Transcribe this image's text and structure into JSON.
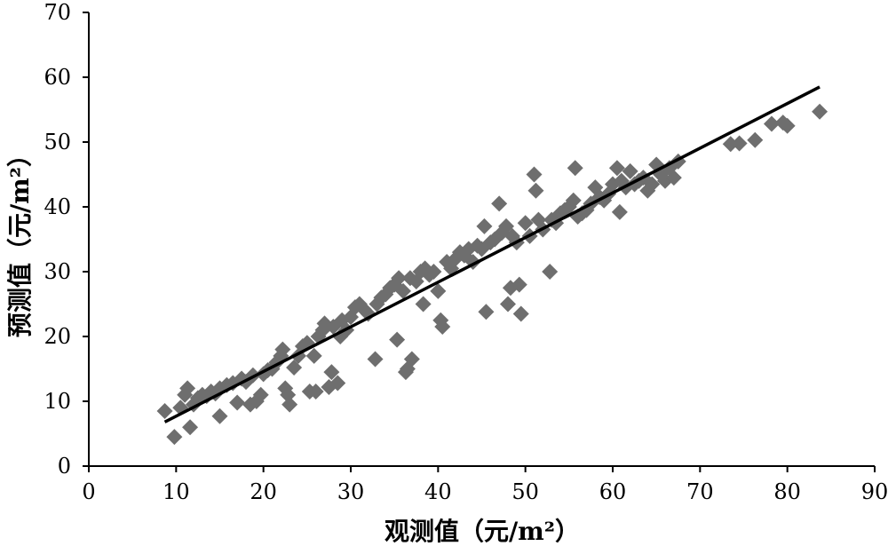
{
  "chart_data": {
    "type": "scatter",
    "xlabel": "观测值（元/m²）",
    "ylabel": "预测值（元/m²）",
    "xlim": [
      0,
      90
    ],
    "ylim": [
      0,
      70
    ],
    "xticks": [
      0,
      10,
      20,
      30,
      40,
      50,
      60,
      70,
      80,
      90
    ],
    "yticks": [
      0,
      10,
      20,
      30,
      40,
      50,
      60,
      70
    ],
    "grid": false,
    "marker_color": "#6e6e6e",
    "line_color": "#000000",
    "trendline": {
      "x": [
        8.7,
        83.7
      ],
      "y": [
        6.8,
        58.5
      ]
    },
    "series": [
      {
        "points": [
          [
            8.7,
            8.5
          ],
          [
            9.8,
            4.5
          ],
          [
            10.5,
            9.0
          ],
          [
            11.0,
            11.0
          ],
          [
            11.3,
            12.0
          ],
          [
            11.6,
            6.0
          ],
          [
            12.0,
            9.5
          ],
          [
            12.5,
            10.5
          ],
          [
            13.0,
            11.0
          ],
          [
            13.5,
            10.8
          ],
          [
            14.0,
            11.5
          ],
          [
            14.5,
            11.2
          ],
          [
            15.0,
            7.7
          ],
          [
            15.0,
            12.0
          ],
          [
            15.8,
            12.5
          ],
          [
            16.5,
            12.8
          ],
          [
            17.0,
            9.8
          ],
          [
            17.5,
            13.5
          ],
          [
            18.0,
            13.0
          ],
          [
            18.5,
            9.5
          ],
          [
            18.8,
            14.0
          ],
          [
            19.2,
            10.0
          ],
          [
            19.7,
            11.0
          ],
          [
            20.0,
            14.2
          ],
          [
            20.5,
            14.8
          ],
          [
            21.0,
            15.0
          ],
          [
            21.5,
            16.0
          ],
          [
            22.0,
            17.0
          ],
          [
            22.2,
            18.0
          ],
          [
            22.5,
            12.0
          ],
          [
            22.8,
            11.0
          ],
          [
            23.0,
            9.5
          ],
          [
            23.5,
            15.2
          ],
          [
            24.0,
            17.0
          ],
          [
            24.5,
            18.5
          ],
          [
            25.0,
            19.0
          ],
          [
            25.3,
            11.5
          ],
          [
            25.8,
            17.0
          ],
          [
            26.0,
            11.5
          ],
          [
            26.3,
            20.0
          ],
          [
            26.8,
            21.0
          ],
          [
            27.0,
            22.0
          ],
          [
            27.5,
            12.2
          ],
          [
            27.8,
            14.5
          ],
          [
            28.0,
            21.5
          ],
          [
            28.5,
            12.8
          ],
          [
            28.8,
            20.0
          ],
          [
            29.0,
            22.5
          ],
          [
            29.5,
            21.0
          ],
          [
            30.0,
            23.0
          ],
          [
            30.5,
            24.5
          ],
          [
            31.0,
            25.0
          ],
          [
            31.5,
            24.2
          ],
          [
            32.0,
            23.5
          ],
          [
            32.8,
            16.5
          ],
          [
            33.0,
            25.0
          ],
          [
            33.5,
            26.0
          ],
          [
            34.0,
            26.5
          ],
          [
            34.5,
            27.5
          ],
          [
            35.0,
            28.0
          ],
          [
            35.3,
            19.5
          ],
          [
            35.5,
            29.0
          ],
          [
            36.0,
            27.0
          ],
          [
            36.3,
            14.5
          ],
          [
            36.5,
            15.0
          ],
          [
            36.8,
            29.0
          ],
          [
            37.0,
            16.5
          ],
          [
            37.5,
            28.5
          ],
          [
            38.0,
            30.0
          ],
          [
            38.3,
            25.0
          ],
          [
            38.5,
            30.5
          ],
          [
            39.0,
            29.5
          ],
          [
            39.5,
            30.0
          ],
          [
            40.0,
            27.0
          ],
          [
            40.3,
            22.5
          ],
          [
            40.5,
            21.5
          ],
          [
            41.0,
            31.5
          ],
          [
            41.5,
            30.5
          ],
          [
            42.0,
            32.0
          ],
          [
            42.5,
            33.0
          ],
          [
            43.0,
            32.5
          ],
          [
            43.5,
            33.5
          ],
          [
            44.0,
            31.5
          ],
          [
            44.5,
            34.0
          ],
          [
            45.0,
            33.5
          ],
          [
            45.3,
            37.0
          ],
          [
            45.5,
            23.8
          ],
          [
            46.0,
            34.5
          ],
          [
            46.5,
            35.0
          ],
          [
            47.0,
            40.5
          ],
          [
            47.3,
            36.0
          ],
          [
            47.8,
            37.0
          ],
          [
            48.0,
            25.0
          ],
          [
            48.3,
            27.5
          ],
          [
            48.5,
            35.5
          ],
          [
            49.0,
            34.5
          ],
          [
            49.3,
            28.0
          ],
          [
            49.5,
            23.5
          ],
          [
            50.0,
            37.5
          ],
          [
            50.5,
            35.5
          ],
          [
            51.0,
            45.0
          ],
          [
            51.2,
            42.5
          ],
          [
            51.5,
            38.0
          ],
          [
            52.0,
            36.5
          ],
          [
            52.8,
            30.0
          ],
          [
            53.0,
            38.0
          ],
          [
            53.5,
            37.5
          ],
          [
            54.0,
            39.0
          ],
          [
            54.5,
            39.5
          ],
          [
            55.0,
            40.0
          ],
          [
            55.5,
            41.0
          ],
          [
            55.7,
            46.0
          ],
          [
            56.0,
            38.5
          ],
          [
            56.5,
            39.0
          ],
          [
            57.0,
            39.5
          ],
          [
            57.5,
            40.5
          ],
          [
            58.0,
            43.0
          ],
          [
            58.5,
            41.5
          ],
          [
            59.0,
            41.0
          ],
          [
            59.5,
            42.0
          ],
          [
            60.0,
            43.5
          ],
          [
            60.5,
            46.0
          ],
          [
            60.8,
            39.2
          ],
          [
            61.0,
            44.0
          ],
          [
            61.5,
            43.0
          ],
          [
            62.0,
            45.5
          ],
          [
            62.5,
            43.5
          ],
          [
            63.0,
            44.0
          ],
          [
            63.5,
            44.5
          ],
          [
            64.0,
            42.5
          ],
          [
            64.5,
            43.5
          ],
          [
            65.0,
            46.5
          ],
          [
            65.5,
            45.0
          ],
          [
            66.0,
            44.0
          ],
          [
            66.5,
            46.0
          ],
          [
            67.0,
            44.5
          ],
          [
            67.5,
            47.0
          ],
          [
            73.5,
            49.7
          ],
          [
            74.5,
            49.8
          ],
          [
            76.3,
            50.3
          ],
          [
            78.2,
            52.8
          ],
          [
            79.5,
            53.0
          ],
          [
            80.0,
            52.5
          ],
          [
            83.7,
            54.7
          ]
        ]
      }
    ]
  }
}
